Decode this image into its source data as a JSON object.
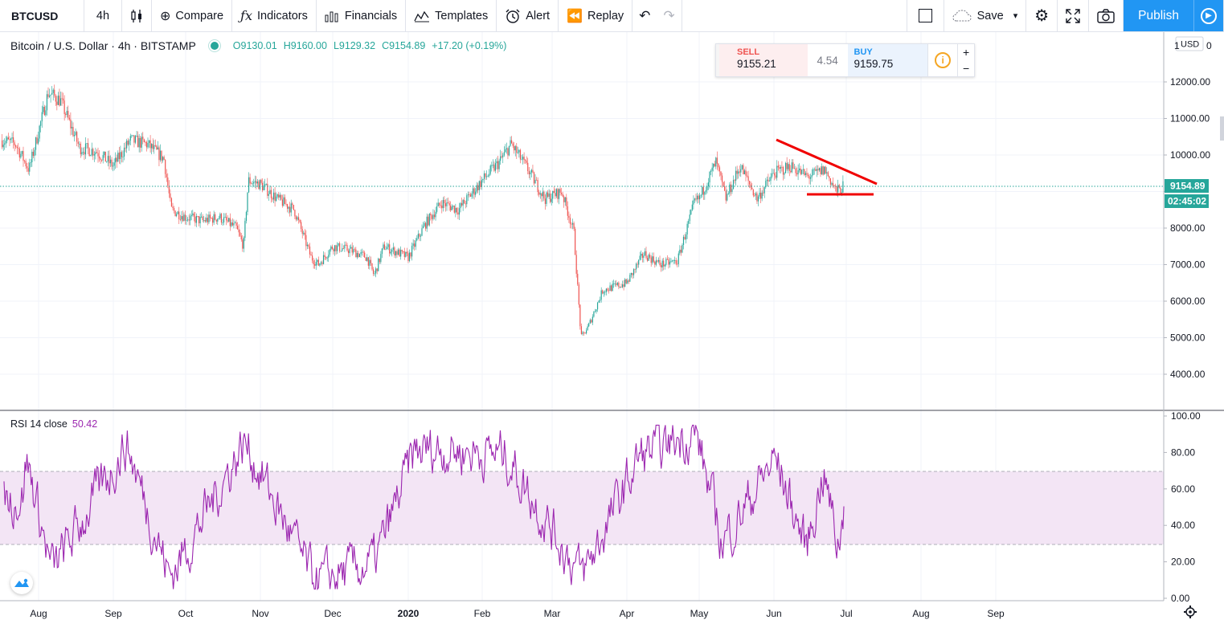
{
  "toolbar": {
    "symbol": "BTCUSD",
    "interval": "4h",
    "compare": "Compare",
    "indicators": "Indicators",
    "financials": "Financials",
    "templates": "Templates",
    "alert": "Alert",
    "replay": "Replay",
    "save": "Save",
    "publish": "Publish"
  },
  "legend": {
    "title": "Bitcoin / U.S. Dollar · 4h · BITSTAMP",
    "open": "O9130.01",
    "high": "H9160.00",
    "low": "L9129.32",
    "close": "C9154.89",
    "change": "+17.20 (+0.19%)"
  },
  "trade": {
    "sell_label": "SELL",
    "sell_price": "9155.21",
    "spread": "4.54",
    "buy_label": "BUY",
    "buy_price": "9159.75",
    "plus": "+",
    "minus": "−"
  },
  "rsi_legend": {
    "label": "RSI 14 close",
    "value": "50.42"
  },
  "currency": "USD",
  "price_tag": "9154.89",
  "countdown_tag": "02:45:02",
  "colors": {
    "up": "#26a69a",
    "down": "#ef5350",
    "rsi": "#9c27b0",
    "rsi_band": "#f3e5f5",
    "trendline": "#f00000",
    "accent": "#2196f3"
  },
  "chart_data": [
    {
      "type": "candlestick",
      "title": "Bitcoin / U.S. Dollar · 4h · BITSTAMP",
      "ylabel": "USD",
      "ylim": [
        3300,
        13000
      ],
      "y_ticks": [
        4000,
        5000,
        6000,
        7000,
        8000,
        9000,
        10000,
        11000,
        12000
      ],
      "y_tick_labels": [
        "4000.00",
        "5000.00",
        "6000.00",
        "7000.00",
        "8000.00",
        "",
        "10000.00",
        "11000.00",
        "12000.00"
      ],
      "x_tick_labels": [
        "Aug",
        "Sep",
        "Oct",
        "Nov",
        "Dec",
        "2020",
        "Feb",
        "Mar",
        "Apr",
        "May",
        "Jun",
        "Jul",
        "Aug",
        "Sep"
      ],
      "x_tick_dates": [
        "2019-08-01",
        "2019-09-01",
        "2019-10-01",
        "2019-11-01",
        "2019-12-01",
        "2020-01-01",
        "2020-02-01",
        "2020-03-01",
        "2020-04-01",
        "2020-05-01",
        "2020-06-01",
        "2020-07-01",
        "2020-08-01",
        "2020-09-01"
      ],
      "last_price": 9154.89,
      "approx_close_path": [
        [
          "2019-07-13",
          10400
        ],
        [
          "2019-07-20",
          10300
        ],
        [
          "2019-07-27",
          9600
        ],
        [
          "2019-08-05",
          11700
        ],
        [
          "2019-08-10",
          11500
        ],
        [
          "2019-08-18",
          10200
        ],
        [
          "2019-08-25",
          10100
        ],
        [
          "2019-09-01",
          9700
        ],
        [
          "2019-09-08",
          10400
        ],
        [
          "2019-09-15",
          10300
        ],
        [
          "2019-09-22",
          9900
        ],
        [
          "2019-09-25",
          8500
        ],
        [
          "2019-10-01",
          8300
        ],
        [
          "2019-10-08",
          8200
        ],
        [
          "2019-10-15",
          8300
        ],
        [
          "2019-10-22",
          8000
        ],
        [
          "2019-10-25",
          7500
        ],
        [
          "2019-10-27",
          9300
        ],
        [
          "2019-11-01",
          9200
        ],
        [
          "2019-11-08",
          8800
        ],
        [
          "2019-11-15",
          8500
        ],
        [
          "2019-11-22",
          7200
        ],
        [
          "2019-11-25",
          7000
        ],
        [
          "2019-12-01",
          7500
        ],
        [
          "2019-12-08",
          7400
        ],
        [
          "2019-12-15",
          7200
        ],
        [
          "2019-12-18",
          6700
        ],
        [
          "2019-12-22",
          7500
        ],
        [
          "2020-01-01",
          7200
        ],
        [
          "2020-01-08",
          8100
        ],
        [
          "2020-01-15",
          8700
        ],
        [
          "2020-01-22",
          8500
        ],
        [
          "2020-02-01",
          9300
        ],
        [
          "2020-02-08",
          9800
        ],
        [
          "2020-02-13",
          10300
        ],
        [
          "2020-02-20",
          9600
        ],
        [
          "2020-02-27",
          8800
        ],
        [
          "2020-03-05",
          9000
        ],
        [
          "2020-03-10",
          7900
        ],
        [
          "2020-03-13",
          5000
        ],
        [
          "2020-03-16",
          5300
        ],
        [
          "2020-03-22",
          6300
        ],
        [
          "2020-04-01",
          6500
        ],
        [
          "2020-04-08",
          7300
        ],
        [
          "2020-04-15",
          7000
        ],
        [
          "2020-04-22",
          7100
        ],
        [
          "2020-04-29",
          8700
        ],
        [
          "2020-05-01",
          8800
        ],
        [
          "2020-05-08",
          9800
        ],
        [
          "2020-05-12",
          8800
        ],
        [
          "2020-05-18",
          9700
        ],
        [
          "2020-05-25",
          8800
        ],
        [
          "2020-06-01",
          9500
        ],
        [
          "2020-06-08",
          9700
        ],
        [
          "2020-06-15",
          9400
        ],
        [
          "2020-06-22",
          9600
        ],
        [
          "2020-06-27",
          9000
        ],
        [
          "2020-06-30",
          9154.89
        ]
      ],
      "annotations": [
        {
          "type": "trendline",
          "from": [
            "2020-06-01",
            10450
          ],
          "to": [
            "2020-07-13",
            9150
          ]
        },
        {
          "type": "horizontal_segment",
          "from": [
            "2020-06-14",
            8850
          ],
          "to": [
            "2020-07-12",
            8850
          ]
        }
      ]
    },
    {
      "type": "line",
      "title": "RSI 14 close",
      "series": [
        {
          "name": "RSI 14 close",
          "last": 50.42
        }
      ],
      "ylim": [
        0,
        100
      ],
      "y_ticks": [
        0,
        20,
        40,
        60,
        80,
        100
      ],
      "y_tick_labels": [
        "0.00",
        "20.00",
        "40.00",
        "60.00",
        "80.00",
        "100.00"
      ],
      "bands": [
        30,
        70
      ],
      "approx_extremes": [
        [
          "2019-07-24",
          83
        ],
        [
          "2019-08-06",
          14
        ],
        [
          "2019-09-06",
          85
        ],
        [
          "2019-09-24",
          11
        ],
        [
          "2019-10-25",
          86
        ],
        [
          "2019-11-23",
          8
        ],
        [
          "2019-12-18",
          20
        ],
        [
          "2020-01-03",
          80
        ],
        [
          "2020-01-14",
          82
        ],
        [
          "2020-02-01",
          80
        ],
        [
          "2020-02-10",
          79
        ],
        [
          "2020-03-08",
          22
        ],
        [
          "2020-03-13",
          12
        ],
        [
          "2020-04-06",
          78
        ],
        [
          "2020-04-29",
          92
        ],
        [
          "2020-05-10",
          30
        ],
        [
          "2020-06-01",
          77
        ],
        [
          "2020-06-14",
          27
        ],
        [
          "2020-06-21",
          71
        ],
        [
          "2020-06-27",
          28
        ],
        [
          "2020-06-30",
          50.42
        ]
      ]
    }
  ]
}
